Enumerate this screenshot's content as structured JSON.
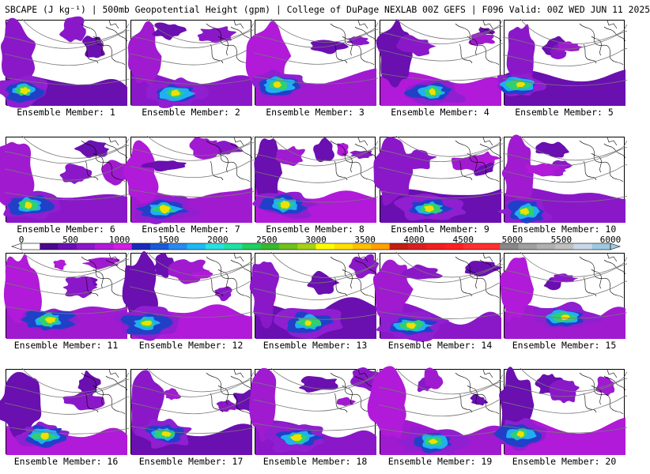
{
  "title": "SBCAPE (J kg⁻¹) | 500mb Geopotential Height (gpm) | College of DuPage NEXLAB 00Z GEFS | F096 Valid: 00Z WED JUN 11 2025",
  "colorbar": {
    "ticks": [
      "0",
      "500",
      "1000",
      "1500",
      "2000",
      "2500",
      "3000",
      "3500",
      "4000",
      "4500",
      "5000",
      "5500",
      "6000"
    ],
    "range": [
      0,
      6000
    ],
    "colors": [
      "#ffffff",
      "#4a0a8c",
      "#6a0fb0",
      "#8a18c8",
      "#b01ad8",
      "#d020e0",
      "#1a2ab8",
      "#1a5ad8",
      "#2a8af0",
      "#20b8f0",
      "#28e0e0",
      "#20e0a8",
      "#20d060",
      "#38b830",
      "#70c020",
      "#a8d018",
      "#ffff00",
      "#ffe000",
      "#ffc000",
      "#ffa000",
      "#c02010",
      "#d82020",
      "#f02020",
      "#ff2020",
      "#ff3030",
      "#ff3030",
      "#888888",
      "#a0a0a0",
      "#b0b0b0",
      "#c0c0c0",
      "#c8d8e8",
      "#a0c8e0"
    ]
  },
  "members": [
    {
      "label": "Ensemble Member: 1"
    },
    {
      "label": "Ensemble Member: 2"
    },
    {
      "label": "Ensemble Member: 3"
    },
    {
      "label": "Ensemble Member: 4"
    },
    {
      "label": "Ensemble Member: 5"
    },
    {
      "label": "Ensemble Member: 6"
    },
    {
      "label": "Ensemble Member: 7"
    },
    {
      "label": "Ensemble Member: 8"
    },
    {
      "label": "Ensemble Member: 9"
    },
    {
      "label": "Ensemble Member: 10"
    },
    {
      "label": "Ensemble Member: 11"
    },
    {
      "label": "Ensemble Member: 12"
    },
    {
      "label": "Ensemble Member: 13"
    },
    {
      "label": "Ensemble Member: 14"
    },
    {
      "label": "Ensemble Member: 15"
    },
    {
      "label": "Ensemble Member: 16"
    },
    {
      "label": "Ensemble Member: 17"
    },
    {
      "label": "Ensemble Member: 18"
    },
    {
      "label": "Ensemble Member: 19"
    },
    {
      "label": "Ensemble Member: 20"
    }
  ]
}
